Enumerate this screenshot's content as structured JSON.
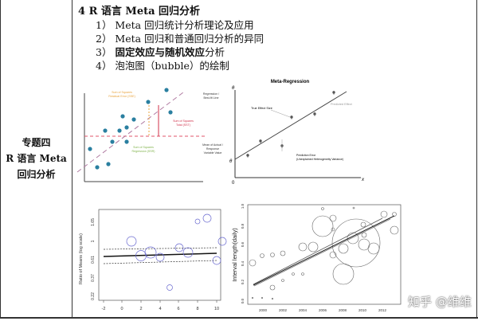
{
  "left_cell": {
    "lines": [
      "专题四",
      "R 语言 Meta",
      "回归分析"
    ]
  },
  "heading": "4 R 语言 Meta 回归分析",
  "items": [
    {
      "text": "1） Meta 回归统计分析理论及应用",
      "bold": ""
    },
    {
      "text": "2） Meta 回归和普通回归分析的异同",
      "bold": ""
    },
    {
      "prefix": "3） ",
      "bold": "固定效应与随机效应",
      "suffix": "分析"
    },
    {
      "text": "4） 泡泡图（bubble）的绘制"
    }
  ],
  "fig1": {
    "sse": [
      "Sum of Squares",
      "Residual Error (SSE)"
    ],
    "fit": [
      "Regression /",
      "Best-fit Line"
    ],
    "sst": [
      "Sum of Squares",
      "Total (SST)"
    ],
    "ssr": [
      "Sum of Squares",
      "Regression (SSR)"
    ],
    "mean": [
      "Mean of Actual /",
      "Response",
      "Variable Value"
    ],
    "colors": {
      "points": "#2a7fa0",
      "regression": "#b07aa1",
      "mean": "#e0556b",
      "sse": "#e8a33c",
      "sst": "#d0304a",
      "ssr": "#7fb24a"
    }
  },
  "fig2": {
    "title": "Meta-Regression",
    "theta": "θ",
    "theta0": "θ",
    "zero": "0",
    "x": "x",
    "true_effect": "True Effect Size",
    "predicted": "Predicted Effect",
    "error": [
      "Prediction Error",
      "(Unexplained Heterogeneity Variance)"
    ]
  },
  "fig3": {
    "ylabel": "Ratio of Means (log scale)",
    "yticks": [
      "1.65",
      "1",
      "0.61",
      "0.37",
      "0.22"
    ],
    "xticks": [
      "-2",
      "0",
      "2",
      "4",
      "6",
      "8",
      "10"
    ],
    "bubble_color": "#6a6ad0"
  },
  "fig4": {
    "ylabel": "Interval length(daily)",
    "yticks": [
      "1.0",
      "0.8",
      "0.6",
      "0.4",
      "0.2",
      "0.0"
    ],
    "xticks": [
      "2000",
      "2002",
      "2004",
      "2006",
      "2008",
      "2010",
      "2012"
    ]
  },
  "watermark": "知乎 @维维"
}
